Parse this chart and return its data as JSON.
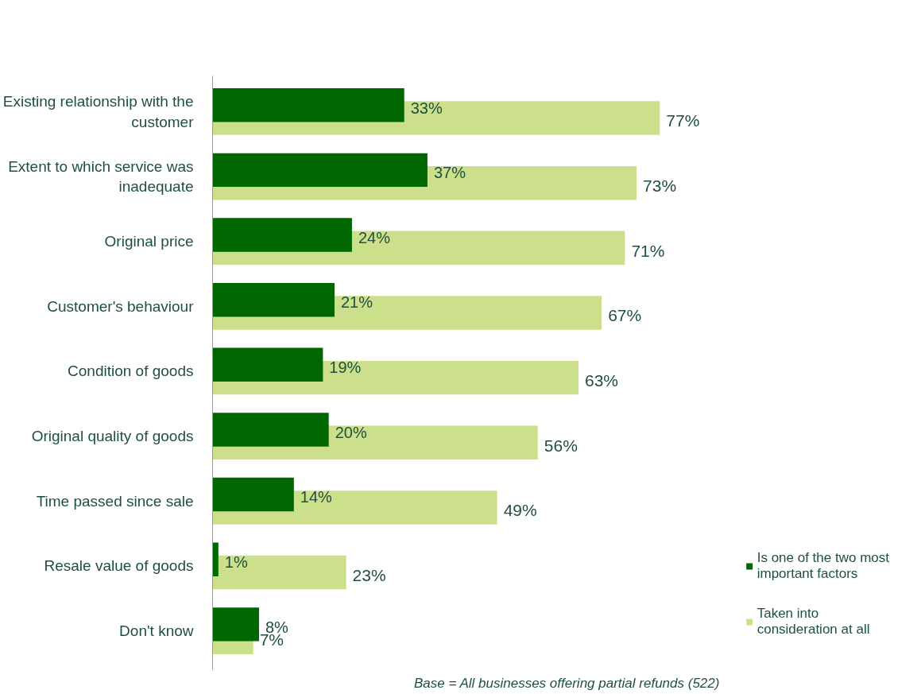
{
  "chart_data": {
    "type": "bar",
    "orientation": "horizontal",
    "legend": "bottom right",
    "grid": false,
    "categories": [
      "Existing relationship with the customer",
      "Extent to which service was inadequate",
      "Original price",
      "Customer's behaviour",
      "Condition of goods",
      "Original quality of goods",
      "Time passed since sale",
      "Resale value of goods",
      "Don't know"
    ],
    "series": [
      {
        "name": "Is one of the two most important factors",
        "color": "#006600",
        "values": [
          33,
          37,
          24,
          21,
          19,
          20,
          14,
          1,
          8
        ],
        "value_labels": [
          "33%",
          "37%",
          "24%",
          "21%",
          "19%",
          "20%",
          "14%",
          "1%",
          "8%"
        ]
      },
      {
        "name": "Taken into consideration at all",
        "color": "#cce08c",
        "values": [
          77,
          73,
          71,
          67,
          63,
          56,
          49,
          23,
          7
        ],
        "value_labels": [
          "77%",
          "73%",
          "71%",
          "67%",
          "63%",
          "56%",
          "49%",
          "23%",
          "7%"
        ]
      }
    ],
    "tick_labels": "y",
    "annotations": [
      "Base = All businesses offering partial refunds (522)"
    ]
  }
}
